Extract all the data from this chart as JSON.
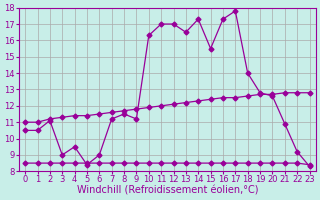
{
  "xlabel": "Windchill (Refroidissement éolien,°C)",
  "bg_color": "#c8eee8",
  "line_color": "#990099",
  "grid_color": "#aaaaaa",
  "xlim": [
    -0.5,
    23.5
  ],
  "ylim": [
    8,
    18
  ],
  "xticks": [
    0,
    1,
    2,
    3,
    4,
    5,
    6,
    7,
    8,
    9,
    10,
    11,
    12,
    13,
    14,
    15,
    16,
    17,
    18,
    19,
    20,
    21,
    22,
    23
  ],
  "yticks": [
    8,
    9,
    10,
    11,
    12,
    13,
    14,
    15,
    16,
    17,
    18
  ],
  "line1_x": [
    0,
    1,
    2,
    3,
    4,
    5,
    6,
    7,
    8,
    9,
    10,
    11,
    12,
    13,
    14,
    15,
    16,
    17,
    18,
    19,
    20,
    21,
    22,
    23
  ],
  "line1_y": [
    10.5,
    10.5,
    11.1,
    9.0,
    9.5,
    8.4,
    9.0,
    11.2,
    11.5,
    11.2,
    16.3,
    17.0,
    17.0,
    16.5,
    17.3,
    15.5,
    17.3,
    17.8,
    14.0,
    12.8,
    12.6,
    10.9,
    9.2,
    8.3
  ],
  "line2_x": [
    0,
    1,
    2,
    3,
    4,
    5,
    6,
    7,
    8,
    9,
    10,
    11,
    12,
    13,
    14,
    15,
    16,
    17,
    18,
    19,
    20,
    21,
    22,
    23
  ],
  "line2_y": [
    11.0,
    11.0,
    11.2,
    11.3,
    11.4,
    11.4,
    11.5,
    11.6,
    11.7,
    11.8,
    11.9,
    12.0,
    12.1,
    12.2,
    12.3,
    12.4,
    12.5,
    12.5,
    12.6,
    12.7,
    12.7,
    12.8,
    12.8,
    12.8
  ],
  "line3_x": [
    0,
    1,
    2,
    3,
    4,
    5,
    6,
    7,
    8,
    9,
    10,
    11,
    12,
    13,
    14,
    15,
    16,
    17,
    18,
    19,
    20,
    21,
    22,
    23
  ],
  "line3_y": [
    8.5,
    8.5,
    8.5,
    8.5,
    8.5,
    8.5,
    8.5,
    8.5,
    8.5,
    8.5,
    8.5,
    8.5,
    8.5,
    8.5,
    8.5,
    8.5,
    8.5,
    8.5,
    8.5,
    8.5,
    8.5,
    8.5,
    8.5,
    8.4
  ],
  "marker": "D",
  "marker_size": 2.5,
  "linewidth": 0.9,
  "xlabel_fontsize": 7,
  "tick_fontsize": 6
}
